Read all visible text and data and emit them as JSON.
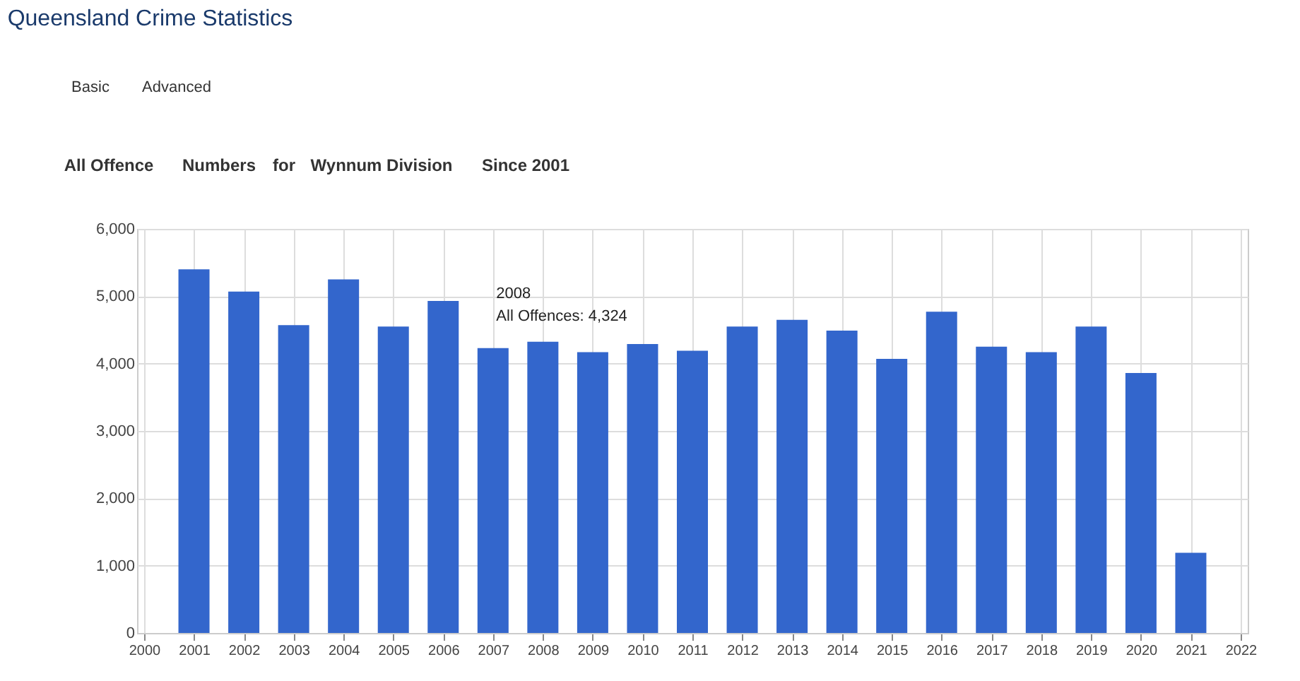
{
  "chart_data": {
    "type": "bar",
    "title": "Queensland Crime Statistics",
    "annotations": [
      "Basic",
      "Advanced",
      "All Offence",
      "Numbers",
      "for",
      "Wynnum Division",
      "Since 2001",
      {
        "text": "2008\nAll Offences: 4,324",
        "x": 2008,
        "y": 4324
      }
    ],
    "x": [
      2001,
      2002,
      2003,
      2004,
      2005,
      2006,
      2007,
      2008,
      2009,
      2010,
      2011,
      2012,
      2013,
      2014,
      2015,
      2016,
      2017,
      2018,
      2019,
      2020,
      2021
    ],
    "values": [
      5400,
      5070,
      4570,
      5250,
      4550,
      4930,
      4230,
      4324,
      4170,
      4290,
      4190,
      4550,
      4650,
      4490,
      4070,
      4770,
      4250,
      4170,
      4550,
      3860,
      1190
    ],
    "color": "#3366cc",
    "xlim": [
      2000,
      2022
    ],
    "xticks": [
      2000,
      2001,
      2002,
      2003,
      2004,
      2005,
      2006,
      2007,
      2008,
      2009,
      2010,
      2011,
      2012,
      2013,
      2014,
      2015,
      2016,
      2017,
      2018,
      2019,
      2020,
      2021,
      2022
    ],
    "ylim": [
      0,
      6000
    ],
    "yticks": [
      0,
      {
        "value": 1000,
        "label": "1,000"
      },
      {
        "value": 2000,
        "label": "2,000"
      },
      {
        "value": 3000,
        "label": "3,000"
      },
      {
        "value": 4000,
        "label": "4,000"
      },
      {
        "value": 5000,
        "label": "5,000"
      },
      {
        "value": 6000,
        "label": "6,000"
      }
    ],
    "grid": true
  }
}
